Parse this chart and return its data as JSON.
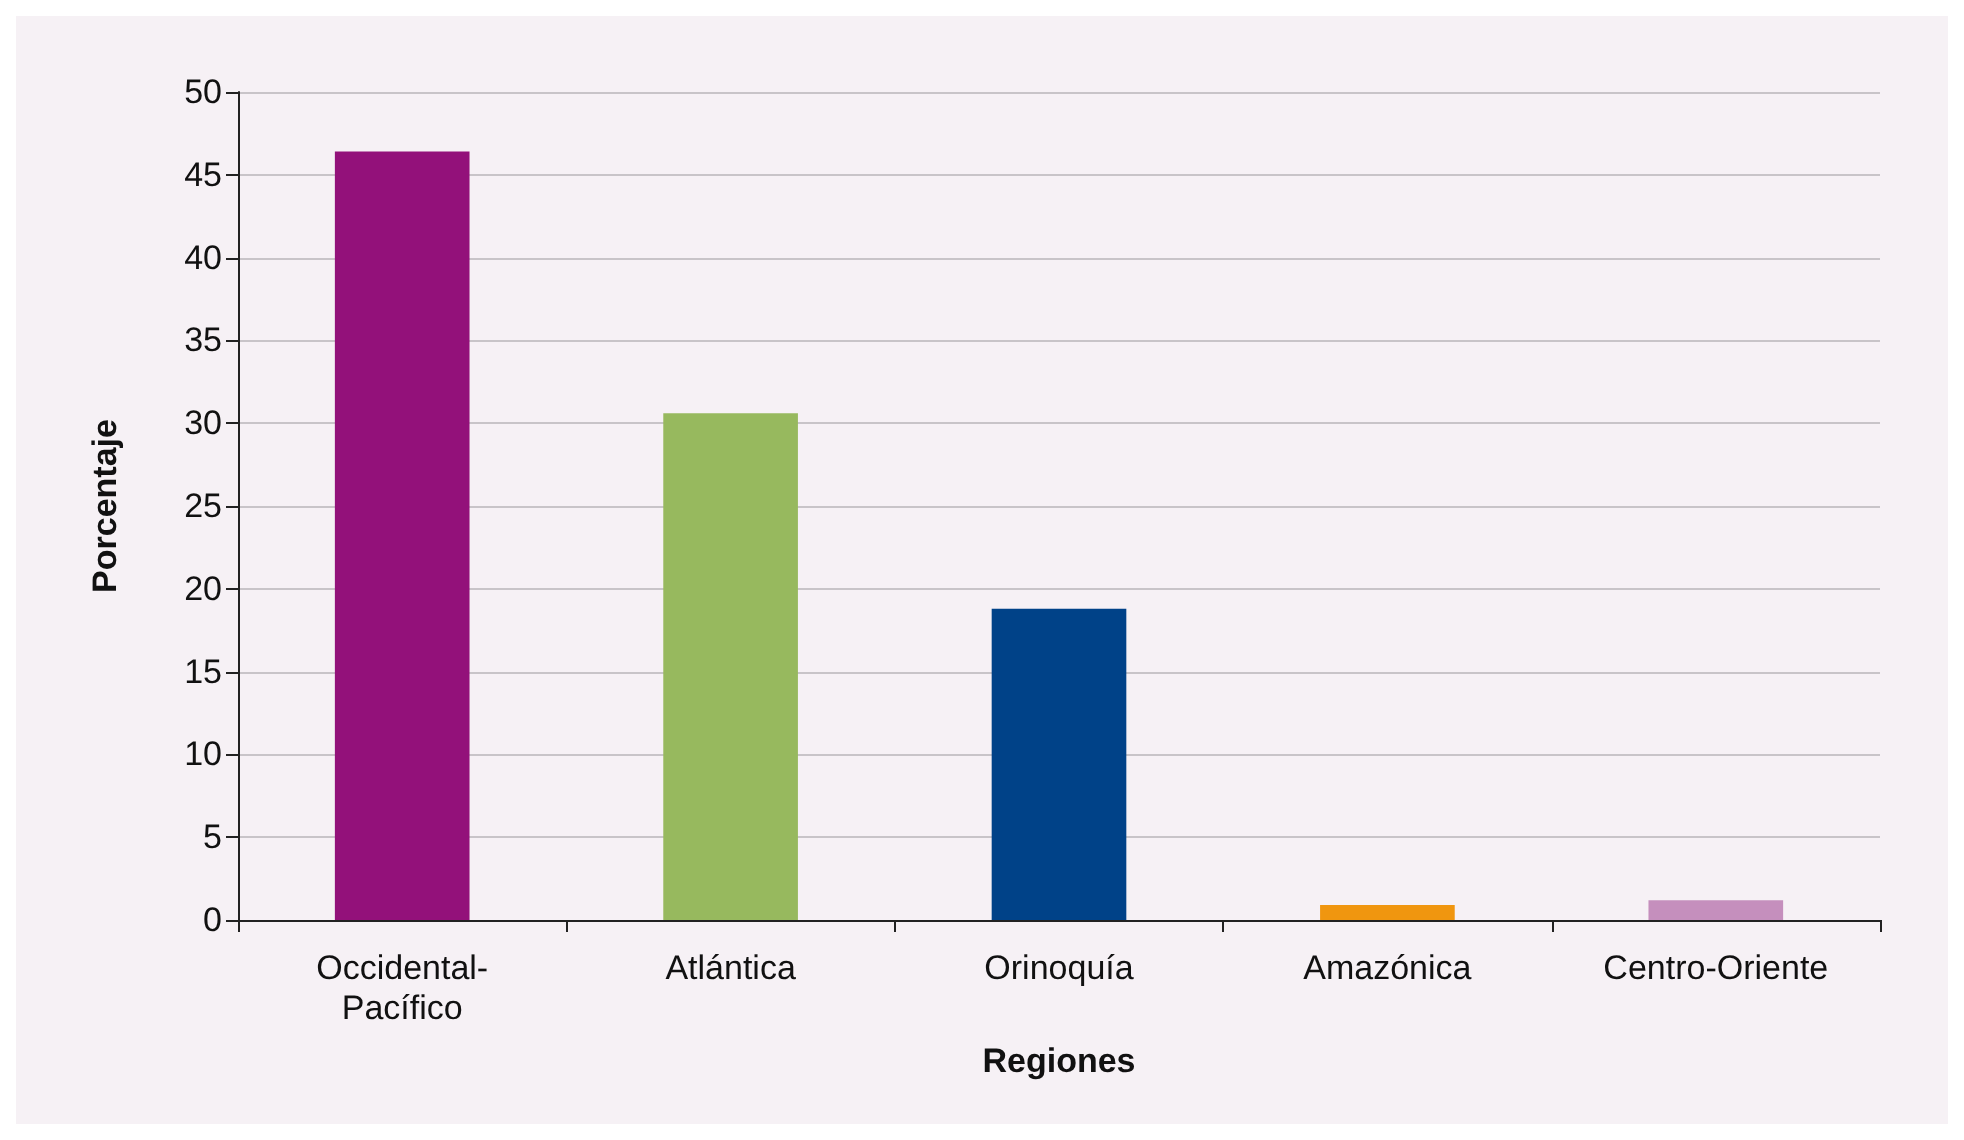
{
  "chart_data": {
    "type": "bar",
    "xlabel": "Regiones",
    "ylabel": "Porcentaje",
    "categories": [
      "Occidental-\nPacífico",
      "Atlántica",
      "Orinoquía",
      "Amazónica",
      "Centro-Oriente"
    ],
    "values": [
      46.4,
      30.6,
      18.8,
      0.9,
      1.2
    ],
    "colors": [
      "#93117a",
      "#97b95e",
      "#004288",
      "#f0960f",
      "#c58fbd"
    ],
    "ylim": [
      0,
      50
    ],
    "yticks": [
      0,
      5,
      10,
      15,
      20,
      25,
      30,
      35,
      40,
      45,
      50
    ],
    "grid": "y"
  }
}
